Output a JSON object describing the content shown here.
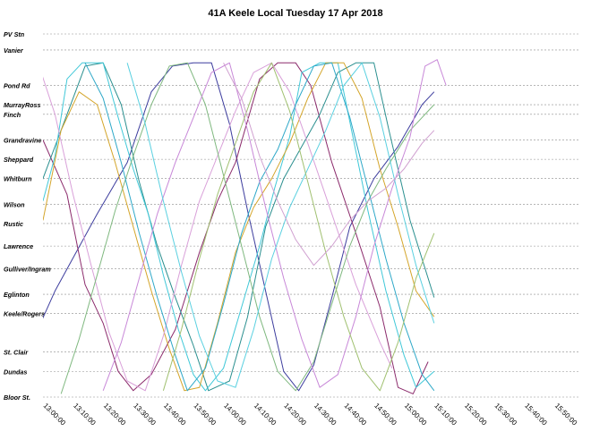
{
  "chart_data": {
    "type": "line",
    "title": "41A Keele Local Tuesday 17 Apr 2018",
    "xlabel": "",
    "ylabel": "",
    "grid": true,
    "x_ticks": [
      "13:00:00",
      "13:10:00",
      "13:20:00",
      "13:30:00",
      "13:40:00",
      "13:50:00",
      "14:00:00",
      "14:10:00",
      "14:20:00",
      "14:30:00",
      "14:40:00",
      "14:50:00",
      "15:00:00",
      "15:10:00",
      "15:20:00",
      "15:30:00",
      "15:40:00",
      "15:50:00"
    ],
    "xlim": [
      "13:00:00",
      "16:00:00"
    ],
    "stops": [
      {
        "name": "PV Stn",
        "pos": 0
      },
      {
        "name": "Vanier",
        "pos": 5
      },
      {
        "name": "Pond Rd",
        "pos": 16
      },
      {
        "name": "MurrayRoss",
        "pos": 22
      },
      {
        "name": "Finch",
        "pos": 25
      },
      {
        "name": "Grandravine",
        "pos": 33
      },
      {
        "name": "Sheppard",
        "pos": 39
      },
      {
        "name": "Whitburn",
        "pos": 45
      },
      {
        "name": "Wilson",
        "pos": 53
      },
      {
        "name": "Rustic",
        "pos": 59
      },
      {
        "name": "Lawrence",
        "pos": 66
      },
      {
        "name": "Gulliver/Ingram",
        "pos": 73
      },
      {
        "name": "Eglinton",
        "pos": 81
      },
      {
        "name": "Keele/Rogers",
        "pos": 87
      },
      {
        "name": "St. Clair",
        "pos": 99
      },
      {
        "name": "Dundas",
        "pos": 105
      },
      {
        "name": "Bloor St.",
        "pos": 113
      }
    ],
    "series": [
      {
        "color": "#3d3d9e",
        "points": [
          [
            -8,
            105
          ],
          [
            4,
            80
          ],
          [
            18,
            56
          ],
          [
            28,
            40
          ],
          [
            36,
            18
          ],
          [
            43,
            10
          ],
          [
            50,
            9
          ],
          [
            56,
            9
          ],
          [
            62,
            28
          ],
          [
            68,
            55
          ],
          [
            74,
            80
          ],
          [
            80,
            105
          ],
          [
            85,
            111
          ],
          [
            90,
            103
          ],
          [
            96,
            82
          ],
          [
            102,
            60
          ],
          [
            110,
            45
          ],
          [
            118,
            35
          ],
          [
            126,
            22
          ],
          [
            130,
            18
          ]
        ]
      },
      {
        "color": "#8b2a6b",
        "points": [
          [
            0,
            33
          ],
          [
            8,
            50
          ],
          [
            14,
            78
          ],
          [
            20,
            90
          ],
          [
            25,
            105
          ],
          [
            30,
            111
          ],
          [
            36,
            106
          ],
          [
            44,
            92
          ],
          [
            52,
            68
          ],
          [
            58,
            52
          ],
          [
            64,
            40
          ],
          [
            72,
            14
          ],
          [
            78,
            9
          ],
          [
            84,
            9
          ],
          [
            89,
            16
          ],
          [
            96,
            40
          ],
          [
            104,
            62
          ],
          [
            112,
            85
          ],
          [
            118,
            110
          ],
          [
            123,
            112
          ],
          [
            128,
            102
          ]
        ]
      },
      {
        "color": "#2a8f8f",
        "points": [
          [
            -6,
            60
          ],
          [
            2,
            40
          ],
          [
            8,
            25
          ],
          [
            14,
            10
          ],
          [
            20,
            9
          ],
          [
            26,
            22
          ],
          [
            32,
            46
          ],
          [
            38,
            66
          ],
          [
            44,
            82
          ],
          [
            50,
            97
          ],
          [
            55,
            111
          ],
          [
            62,
            108
          ],
          [
            68,
            88
          ],
          [
            74,
            60
          ],
          [
            80,
            45
          ],
          [
            86,
            35
          ],
          [
            92,
            25
          ],
          [
            98,
            12
          ],
          [
            104,
            9
          ],
          [
            110,
            9
          ],
          [
            115,
            30
          ],
          [
            122,
            58
          ],
          [
            130,
            82
          ]
        ]
      },
      {
        "color": "#40c8d8",
        "points": [
          [
            0,
            52
          ],
          [
            4,
            38
          ],
          [
            8,
            14
          ],
          [
            13,
            9
          ],
          [
            20,
            9
          ],
          [
            25,
            26
          ],
          [
            30,
            42
          ],
          [
            35,
            56
          ],
          [
            40,
            75
          ],
          [
            45,
            92
          ],
          [
            50,
            106
          ],
          [
            54,
            111
          ],
          [
            60,
            104
          ],
          [
            66,
            85
          ],
          [
            72,
            66
          ],
          [
            77,
            48
          ],
          [
            82,
            32
          ],
          [
            86,
            12
          ],
          [
            92,
            9
          ],
          [
            98,
            9
          ],
          [
            103,
            32
          ],
          [
            108,
            55
          ],
          [
            114,
            80
          ],
          [
            120,
            100
          ],
          [
            124,
            110
          ],
          [
            130,
            105
          ]
        ]
      },
      {
        "color": "#d4a52a",
        "points": [
          [
            0,
            58
          ],
          [
            6,
            30
          ],
          [
            12,
            18
          ],
          [
            18,
            22
          ],
          [
            24,
            40
          ],
          [
            30,
            60
          ],
          [
            36,
            80
          ],
          [
            42,
            98
          ],
          [
            47,
            111
          ],
          [
            52,
            110
          ],
          [
            58,
            90
          ],
          [
            64,
            68
          ],
          [
            70,
            54
          ],
          [
            76,
            45
          ],
          [
            82,
            34
          ],
          [
            88,
            20
          ],
          [
            94,
            9
          ],
          [
            100,
            9
          ],
          [
            106,
            20
          ],
          [
            112,
            42
          ],
          [
            118,
            60
          ],
          [
            124,
            80
          ],
          [
            130,
            88
          ]
        ]
      },
      {
        "color": "#d9a0d9",
        "points": [
          [
            -2,
            8
          ],
          [
            4,
            25
          ],
          [
            10,
            50
          ],
          [
            16,
            72
          ],
          [
            22,
            93
          ],
          [
            28,
            108
          ],
          [
            34,
            111
          ],
          [
            40,
            94
          ],
          [
            46,
            72
          ],
          [
            52,
            52
          ],
          [
            58,
            38
          ],
          [
            64,
            24
          ],
          [
            70,
            12
          ],
          [
            76,
            9
          ],
          [
            82,
            18
          ],
          [
            88,
            34
          ],
          [
            96,
            56
          ],
          [
            104,
            78
          ],
          [
            112,
            96
          ],
          [
            116,
            104
          ]
        ]
      },
      {
        "color": "#7fb87f",
        "points": [
          [
            6,
            112
          ],
          [
            12,
            95
          ],
          [
            18,
            75
          ],
          [
            24,
            55
          ],
          [
            30,
            38
          ],
          [
            36,
            22
          ],
          [
            42,
            10
          ],
          [
            48,
            9
          ],
          [
            54,
            22
          ],
          [
            60,
            44
          ],
          [
            66,
            66
          ],
          [
            72,
            88
          ],
          [
            78,
            105
          ],
          [
            84,
            111
          ],
          [
            90,
            102
          ],
          [
            96,
            84
          ],
          [
            102,
            66
          ],
          [
            108,
            52
          ],
          [
            114,
            42
          ],
          [
            122,
            30
          ],
          [
            130,
            22
          ]
        ]
      },
      {
        "color": "#2ea8c8",
        "points": [
          [
            14,
            9
          ],
          [
            20,
            20
          ],
          [
            26,
            40
          ],
          [
            32,
            62
          ],
          [
            38,
            82
          ],
          [
            44,
            100
          ],
          [
            48,
            111
          ],
          [
            54,
            104
          ],
          [
            60,
            84
          ],
          [
            66,
            62
          ],
          [
            72,
            46
          ],
          [
            78,
            36
          ],
          [
            84,
            22
          ],
          [
            90,
            10
          ],
          [
            96,
            9
          ],
          [
            102,
            26
          ],
          [
            108,
            48
          ],
          [
            114,
            70
          ],
          [
            120,
            90
          ],
          [
            126,
            106
          ],
          [
            130,
            111
          ]
        ]
      },
      {
        "color": "#c888d8",
        "points": [
          [
            20,
            111
          ],
          [
            26,
            96
          ],
          [
            32,
            76
          ],
          [
            38,
            56
          ],
          [
            44,
            40
          ],
          [
            50,
            26
          ],
          [
            56,
            12
          ],
          [
            62,
            9
          ],
          [
            68,
            30
          ],
          [
            74,
            54
          ],
          [
            80,
            76
          ],
          [
            86,
            95
          ],
          [
            92,
            110
          ],
          [
            98,
            106
          ],
          [
            104,
            88
          ],
          [
            110,
            66
          ],
          [
            116,
            48
          ],
          [
            122,
            32
          ],
          [
            127,
            10
          ],
          [
            131,
            8
          ],
          [
            134,
            16
          ]
        ]
      },
      {
        "color": "#5ad0e0",
        "points": [
          [
            28,
            9
          ],
          [
            34,
            28
          ],
          [
            40,
            52
          ],
          [
            46,
            74
          ],
          [
            52,
            94
          ],
          [
            58,
            108
          ],
          [
            64,
            110
          ],
          [
            70,
            92
          ],
          [
            76,
            70
          ],
          [
            82,
            54
          ],
          [
            88,
            42
          ],
          [
            94,
            30
          ],
          [
            100,
            16
          ],
          [
            106,
            9
          ],
          [
            112,
            26
          ],
          [
            118,
            50
          ],
          [
            124,
            72
          ],
          [
            130,
            90
          ]
        ]
      },
      {
        "color": "#a0c070",
        "points": [
          [
            40,
            111
          ],
          [
            46,
            92
          ],
          [
            52,
            70
          ],
          [
            58,
            50
          ],
          [
            64,
            34
          ],
          [
            70,
            18
          ],
          [
            76,
            9
          ],
          [
            82,
            24
          ],
          [
            88,
            46
          ],
          [
            94,
            68
          ],
          [
            100,
            88
          ],
          [
            106,
            104
          ],
          [
            112,
            111
          ],
          [
            118,
            96
          ],
          [
            124,
            76
          ],
          [
            130,
            62
          ]
        ]
      },
      {
        "color": "#d0a0d0",
        "points": [
          [
            60,
            9
          ],
          [
            66,
            20
          ],
          [
            72,
            38
          ],
          [
            78,
            52
          ],
          [
            84,
            64
          ],
          [
            90,
            72
          ],
          [
            96,
            66
          ],
          [
            102,
            58
          ],
          [
            108,
            52
          ],
          [
            114,
            48
          ],
          [
            120,
            42
          ],
          [
            126,
            34
          ],
          [
            130,
            30
          ]
        ]
      }
    ]
  }
}
